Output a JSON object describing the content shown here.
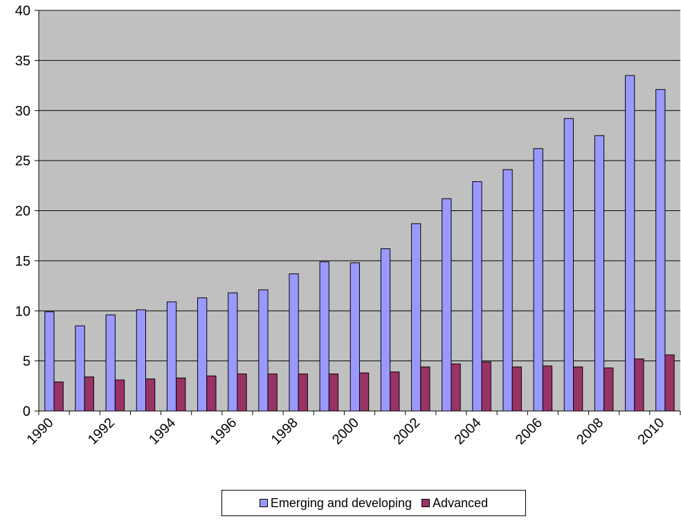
{
  "chart_data": {
    "type": "bar",
    "categories": [
      "1990",
      "1991",
      "1992",
      "1993",
      "1994",
      "1995",
      "1996",
      "1997",
      "1998",
      "1999",
      "2000",
      "2001",
      "2002",
      "2003",
      "2004",
      "2005",
      "2006",
      "2007",
      "2008",
      "2009",
      "2010"
    ],
    "x_tick_labels": [
      "1990",
      "1992",
      "1994",
      "1996",
      "1998",
      "2000",
      "2002",
      "2004",
      "2006",
      "2008",
      "2010"
    ],
    "series": [
      {
        "name": "Emerging and developing",
        "color": "#9999ff",
        "values": [
          9.9,
          8.5,
          9.6,
          10.1,
          10.9,
          11.3,
          11.8,
          12.1,
          13.7,
          14.9,
          14.8,
          16.2,
          18.7,
          21.2,
          22.9,
          24.1,
          26.2,
          29.2,
          27.5,
          33.5,
          32.1
        ]
      },
      {
        "name": "Advanced",
        "color": "#993366",
        "values": [
          2.9,
          3.4,
          3.1,
          3.2,
          3.3,
          3.5,
          3.7,
          3.7,
          3.7,
          3.7,
          3.8,
          3.9,
          4.4,
          4.7,
          4.9,
          4.4,
          4.5,
          4.4,
          4.3,
          5.2,
          5.6
        ]
      }
    ],
    "ylim": [
      0,
      40
    ],
    "y_ticks": [
      0,
      5,
      10,
      15,
      20,
      25,
      30,
      35,
      40
    ],
    "grid": true,
    "plot_background": "#c0c0c0",
    "legend_position": "bottom",
    "title": "",
    "xlabel": "",
    "ylabel": ""
  }
}
